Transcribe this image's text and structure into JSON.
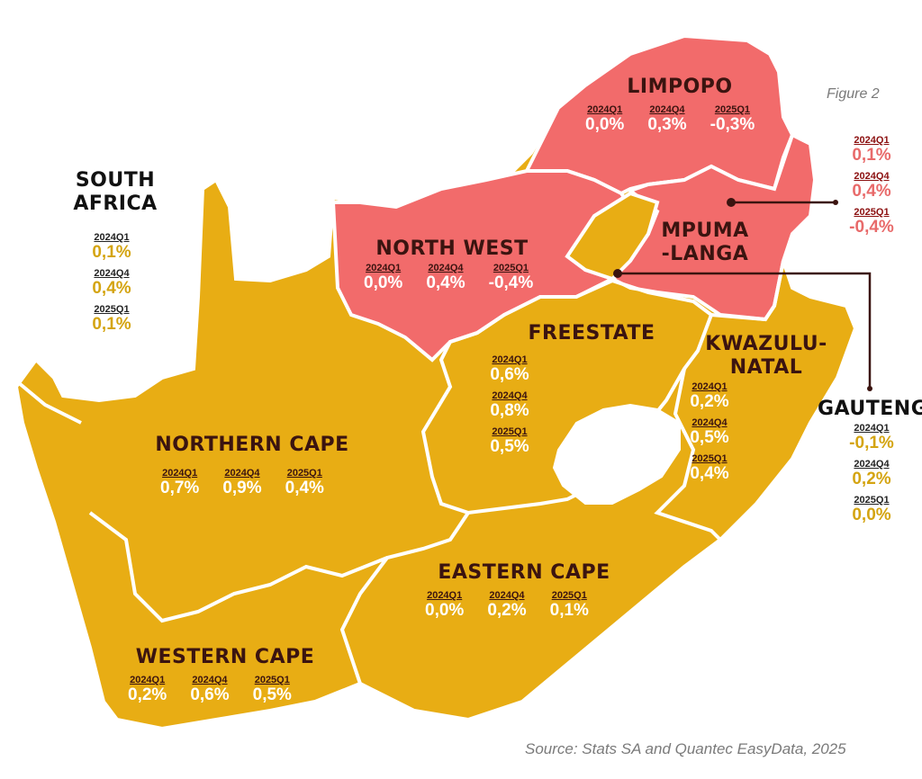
{
  "figure_label": "Figure 2",
  "source": "Source: Stats SA and Quantec EasyData, 2025",
  "quarters": [
    "2024Q1",
    "2024Q4",
    "2025Q1"
  ],
  "colors": {
    "growth_positive_region": "#e8ad14",
    "region_negative_latest": "#f26b6b",
    "border": "#ffffff"
  },
  "south_africa": {
    "name_line1": "SOUTH",
    "name_line2": "AFRICA",
    "values": [
      "0,1%",
      "0,4%",
      "0,1%"
    ]
  },
  "limpopo": {
    "name": "LIMPOPO",
    "values": [
      "0,0%",
      "0,3%",
      "-0,3%"
    ]
  },
  "mpumalanga": {
    "name_line1": "MPUMA",
    "name_line2": "-LANGA",
    "values": [
      "0,1%",
      "0,4%",
      "-0,4%"
    ]
  },
  "north_west": {
    "name": "NORTH WEST",
    "values": [
      "0,0%",
      "0,4%",
      "-0,4%"
    ]
  },
  "freestate": {
    "name": "FREESTATE",
    "values": [
      "0,6%",
      "0,8%",
      "0,5%"
    ]
  },
  "kwazulu_natal": {
    "name_line1": "KWAZULU-",
    "name_line2": "NATAL",
    "values": [
      "0,2%",
      "0,5%",
      "0,4%"
    ]
  },
  "gauteng": {
    "name": "GAUTENG",
    "values": [
      "-0,1%",
      "0,2%",
      "0,0%"
    ]
  },
  "northern_cape": {
    "name": "NORTHERN CAPE",
    "values": [
      "0,7%",
      "0,9%",
      "0,4%"
    ]
  },
  "eastern_cape": {
    "name": "EASTERN CAPE",
    "values": [
      "0,0%",
      "0,2%",
      "0,1%"
    ]
  },
  "western_cape": {
    "name": "WESTERN CAPE",
    "values": [
      "0,2%",
      "0,6%",
      "0,5%"
    ]
  }
}
